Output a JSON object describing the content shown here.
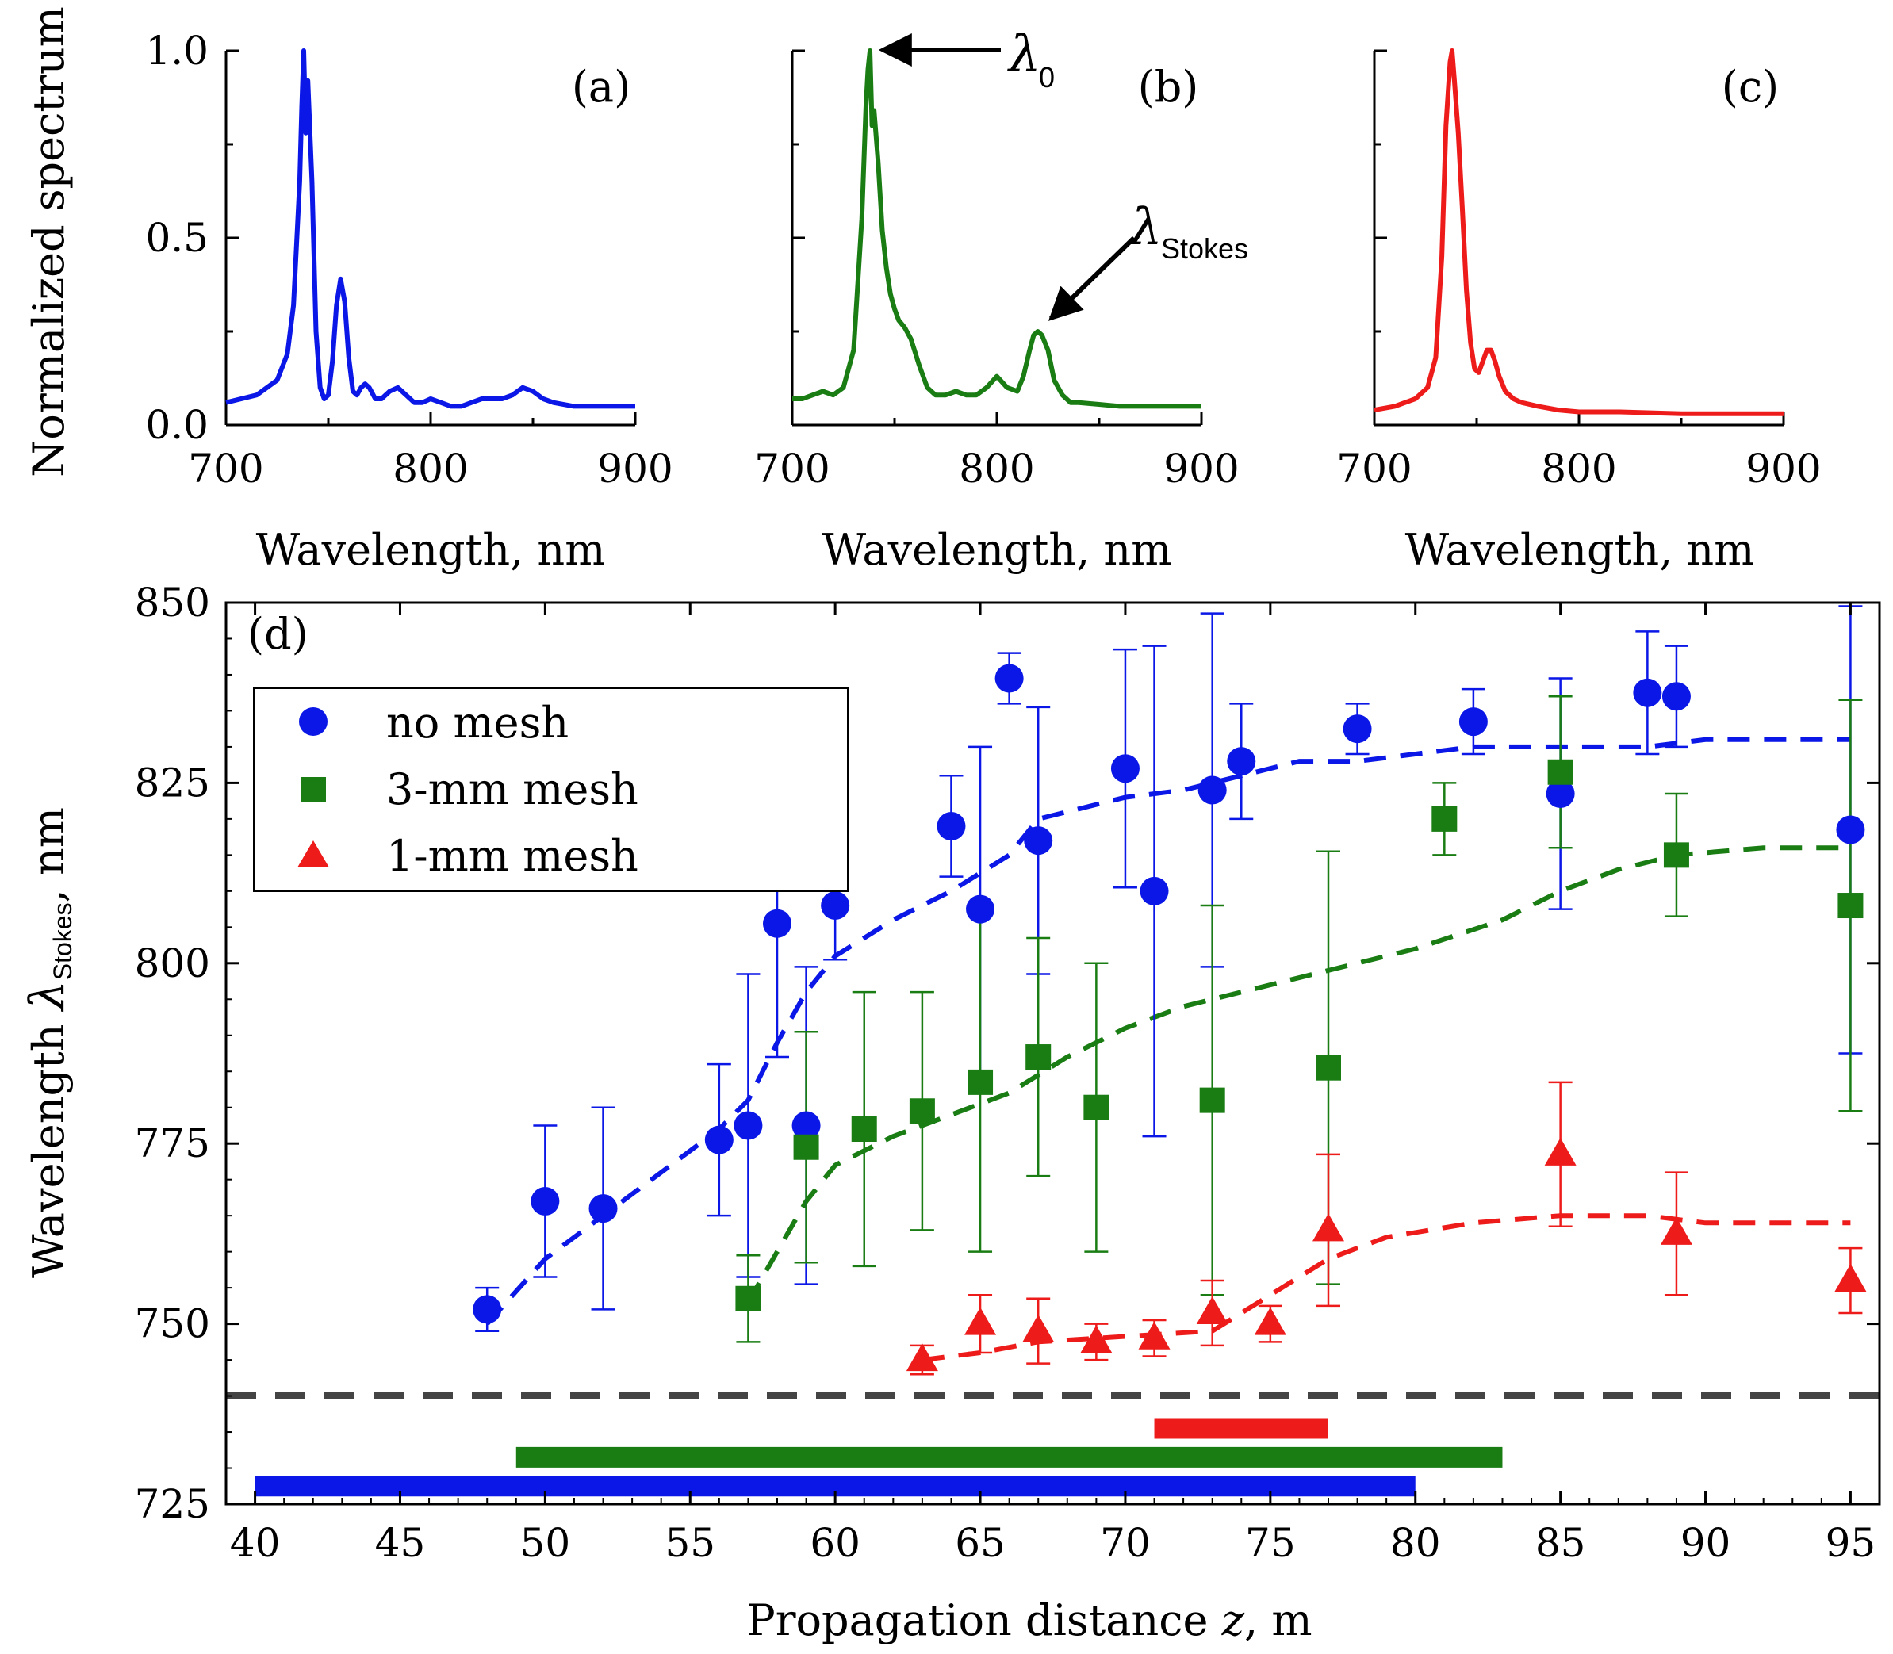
{
  "chart_data": [
    {
      "panel": "(a)",
      "type": "line",
      "color": "#0a17e6",
      "xlabel": "Wavelength, nm",
      "ylabel": "Normalized spectrum",
      "xlim": [
        700,
        900
      ],
      "ylim": [
        0,
        1
      ],
      "xticks": [
        "700",
        "800",
        "900"
      ],
      "yticks": [
        "0.0",
        "0.5",
        "1.0"
      ],
      "series": [
        {
          "name": "spectrum-a",
          "x": [
            700,
            715,
            725,
            730,
            733,
            736,
            737,
            738,
            739,
            740,
            742,
            744,
            746,
            748,
            750,
            752,
            754,
            756,
            758,
            760,
            762,
            764,
            766,
            768,
            770,
            773,
            776,
            780,
            784,
            788,
            792,
            796,
            800,
            805,
            810,
            815,
            820,
            825,
            830,
            835,
            840,
            845,
            850,
            855,
            860,
            870,
            880,
            890,
            900
          ],
          "y": [
            0.06,
            0.08,
            0.12,
            0.19,
            0.32,
            0.65,
            0.85,
            1.0,
            0.78,
            0.92,
            0.65,
            0.25,
            0.1,
            0.07,
            0.08,
            0.17,
            0.32,
            0.39,
            0.33,
            0.18,
            0.09,
            0.08,
            0.1,
            0.11,
            0.1,
            0.07,
            0.07,
            0.09,
            0.1,
            0.08,
            0.06,
            0.06,
            0.07,
            0.06,
            0.05,
            0.05,
            0.06,
            0.07,
            0.07,
            0.07,
            0.08,
            0.1,
            0.09,
            0.07,
            0.06,
            0.05,
            0.05,
            0.05,
            0.05
          ]
        }
      ]
    },
    {
      "panel": "(b)",
      "type": "line",
      "color": "#1a7d14",
      "xlabel": "Wavelength, nm",
      "xlim": [
        700,
        900
      ],
      "ylim": [
        0,
        1
      ],
      "xticks": [
        "700",
        "800",
        "900"
      ],
      "series": [
        {
          "name": "spectrum-b",
          "x": [
            700,
            705,
            710,
            715,
            720,
            725,
            730,
            734,
            736,
            737,
            738,
            739,
            740,
            742,
            744,
            746,
            748,
            750,
            752,
            755,
            758,
            762,
            766,
            770,
            775,
            780,
            785,
            790,
            795,
            800,
            805,
            810,
            813,
            816,
            818,
            820,
            822,
            825,
            828,
            832,
            836,
            840,
            850,
            860,
            880,
            900
          ],
          "y": [
            0.07,
            0.07,
            0.08,
            0.09,
            0.08,
            0.1,
            0.2,
            0.55,
            0.85,
            0.95,
            1.0,
            0.8,
            0.84,
            0.7,
            0.52,
            0.42,
            0.35,
            0.31,
            0.28,
            0.26,
            0.23,
            0.16,
            0.1,
            0.08,
            0.08,
            0.09,
            0.08,
            0.08,
            0.1,
            0.13,
            0.1,
            0.09,
            0.13,
            0.2,
            0.24,
            0.25,
            0.24,
            0.2,
            0.12,
            0.08,
            0.06,
            0.06,
            0.055,
            0.05,
            0.05,
            0.05
          ]
        }
      ],
      "annotations": [
        {
          "text": "λ",
          "subscript": "0"
        },
        {
          "text": "λ",
          "subscript": "Stokes"
        }
      ]
    },
    {
      "panel": "(c)",
      "type": "line",
      "color": "#ee1b1b",
      "xlabel": "Wavelength, nm",
      "xlim": [
        700,
        900
      ],
      "ylim": [
        0,
        1
      ],
      "xticks": [
        "700",
        "800",
        "900"
      ],
      "series": [
        {
          "name": "spectrum-c",
          "x": [
            700,
            710,
            720,
            726,
            730,
            733,
            735,
            737,
            738,
            739,
            741,
            743,
            745,
            747,
            749,
            751,
            753,
            755,
            757,
            759,
            761,
            764,
            768,
            772,
            780,
            790,
            800,
            820,
            850,
            880,
            900
          ],
          "y": [
            0.04,
            0.05,
            0.07,
            0.1,
            0.18,
            0.45,
            0.8,
            0.97,
            1.0,
            0.93,
            0.78,
            0.58,
            0.36,
            0.22,
            0.15,
            0.14,
            0.17,
            0.2,
            0.2,
            0.17,
            0.13,
            0.09,
            0.07,
            0.06,
            0.05,
            0.04,
            0.035,
            0.035,
            0.03,
            0.03,
            0.03
          ]
        }
      ]
    },
    {
      "panel": "(d)",
      "type": "scatter",
      "xlabel": "Propagation distance z, m",
      "ylabel": "Wavelength λStokes, nm",
      "xlim": [
        39,
        96
      ],
      "ylim": [
        725,
        850
      ],
      "xticks": [
        "40",
        "45",
        "50",
        "55",
        "60",
        "65",
        "70",
        "75",
        "80",
        "85",
        "90",
        "95"
      ],
      "yticks": [
        "725",
        "750",
        "775",
        "800",
        "825",
        "850"
      ],
      "reference_line_y": 740,
      "legend_position": "upper-left",
      "series": [
        {
          "name": "no mesh",
          "color": "#0a17e6",
          "marker": "circle",
          "x": [
            48,
            50,
            52,
            56,
            57,
            58,
            59,
            60,
            64,
            65,
            66,
            67,
            70,
            71,
            73,
            74,
            78,
            82,
            85,
            88,
            89,
            95
          ],
          "y": [
            752,
            767,
            766,
            775.5,
            777.5,
            805.5,
            777.5,
            808,
            819,
            807.5,
            839.5,
            817,
            827,
            810,
            824,
            828,
            832.5,
            833.5,
            823.5,
            837.5,
            837,
            818.5
          ],
          "err": [
            3,
            10.5,
            14,
            10.5,
            21,
            18.5,
            22,
            7.5,
            7,
            22.5,
            3.5,
            18.5,
            16.5,
            34,
            24.5,
            8,
            3.5,
            4.5,
            16,
            8.5,
            7,
            31
          ],
          "fit": {
            "x": [
              48,
              50,
              52,
              54,
              56,
              57,
              58,
              59,
              60,
              62,
              64,
              66,
              67,
              68,
              70,
              72,
              74,
              76,
              78,
              80,
              82,
              85,
              88,
              90,
              93,
              95
            ],
            "y": [
              750,
              759,
              765,
              771,
              777,
              781,
              789,
              796,
              801,
              806,
              810,
              815,
              820,
              821,
              823,
              824,
              826,
              828,
              828,
              829,
              830,
              830,
              830,
              831,
              831,
              831
            ]
          }
        },
        {
          "name": "3-mm mesh",
          "color": "#1a7d14",
          "marker": "square",
          "x": [
            57,
            59,
            61,
            63,
            65,
            67,
            69,
            73,
            77,
            81,
            85,
            89,
            95
          ],
          "y": [
            753.5,
            774.5,
            777,
            779.5,
            783.5,
            787,
            780,
            781,
            785.5,
            820,
            826.5,
            815,
            808
          ],
          "err": [
            6,
            16,
            19,
            16.5,
            23.5,
            16.5,
            20,
            27,
            30,
            5,
            10.5,
            8.5,
            28.5
          ],
          "fit": {
            "x": [
              57,
              58,
              59,
              60,
              62,
              64,
              66,
              68,
              70,
              72,
              74,
              77,
              80,
              83,
              85,
              87,
              89,
              92,
              95
            ],
            "y": [
              753,
              760,
              767,
              772,
              776,
              779,
              782,
              787,
              791,
              794,
              796,
              799,
              802,
              806,
              810,
              813,
              815,
              816,
              816
            ]
          }
        },
        {
          "name": "1-mm mesh",
          "color": "#ee1b1b",
          "marker": "triangle",
          "x": [
            63,
            65,
            67,
            69,
            71,
            73,
            75,
            77,
            85,
            89,
            95
          ],
          "y": [
            745,
            750,
            749,
            747.5,
            748,
            751.5,
            750,
            763,
            773.5,
            762.5,
            756
          ],
          "err": [
            2,
            4,
            4.5,
            2.5,
            2.5,
            4.5,
            2.5,
            10.5,
            10,
            8.5,
            4.5
          ],
          "fit": {
            "x": [
              63,
              65,
              67,
              69,
              71,
              73,
              75,
              77,
              79,
              82,
              85,
              88,
              90,
              93,
              95
            ],
            "y": [
              745,
              746,
              747.5,
              748,
              748.5,
              749,
              754,
              759,
              762,
              764,
              765,
              765,
              764,
              764,
              764
            ]
          }
        }
      ],
      "range_bars": [
        {
          "name": "no mesh range",
          "color": "#0a17e6",
          "x": [
            40,
            80
          ],
          "y": 727.5
        },
        {
          "name": "3-mm mesh range",
          "color": "#1a7d14",
          "x": [
            49,
            83
          ],
          "y": 731.5
        },
        {
          "name": "1-mm mesh range",
          "color": "#ee1b1b",
          "x": [
            71,
            77
          ],
          "y": 735.5
        }
      ]
    }
  ],
  "labels": {
    "panel_a": "(a)",
    "panel_b": "(b)",
    "panel_c": "(c)",
    "panel_d": "(d)",
    "ylabel_top": "Normalized spectrum",
    "xlabel_top": "Wavelength, nm",
    "xlabel_bottom_prefix": "Propagation distance ",
    "xlabel_bottom_var": "z",
    "xlabel_bottom_suffix": ", m",
    "ylabel_bottom_prefix": "Wavelength ",
    "ylabel_bottom_lambda": "λ",
    "ylabel_bottom_sub": "Stokes",
    "ylabel_bottom_suffix": ", nm",
    "lambda0_symbol": "λ",
    "lambda0_sub": "0",
    "lambdaS_symbol": "λ",
    "lambdaS_sub": "Stokes",
    "legend_no_mesh": "no mesh",
    "legend_3mm": "3-mm mesh",
    "legend_1mm": "1-mm mesh"
  }
}
